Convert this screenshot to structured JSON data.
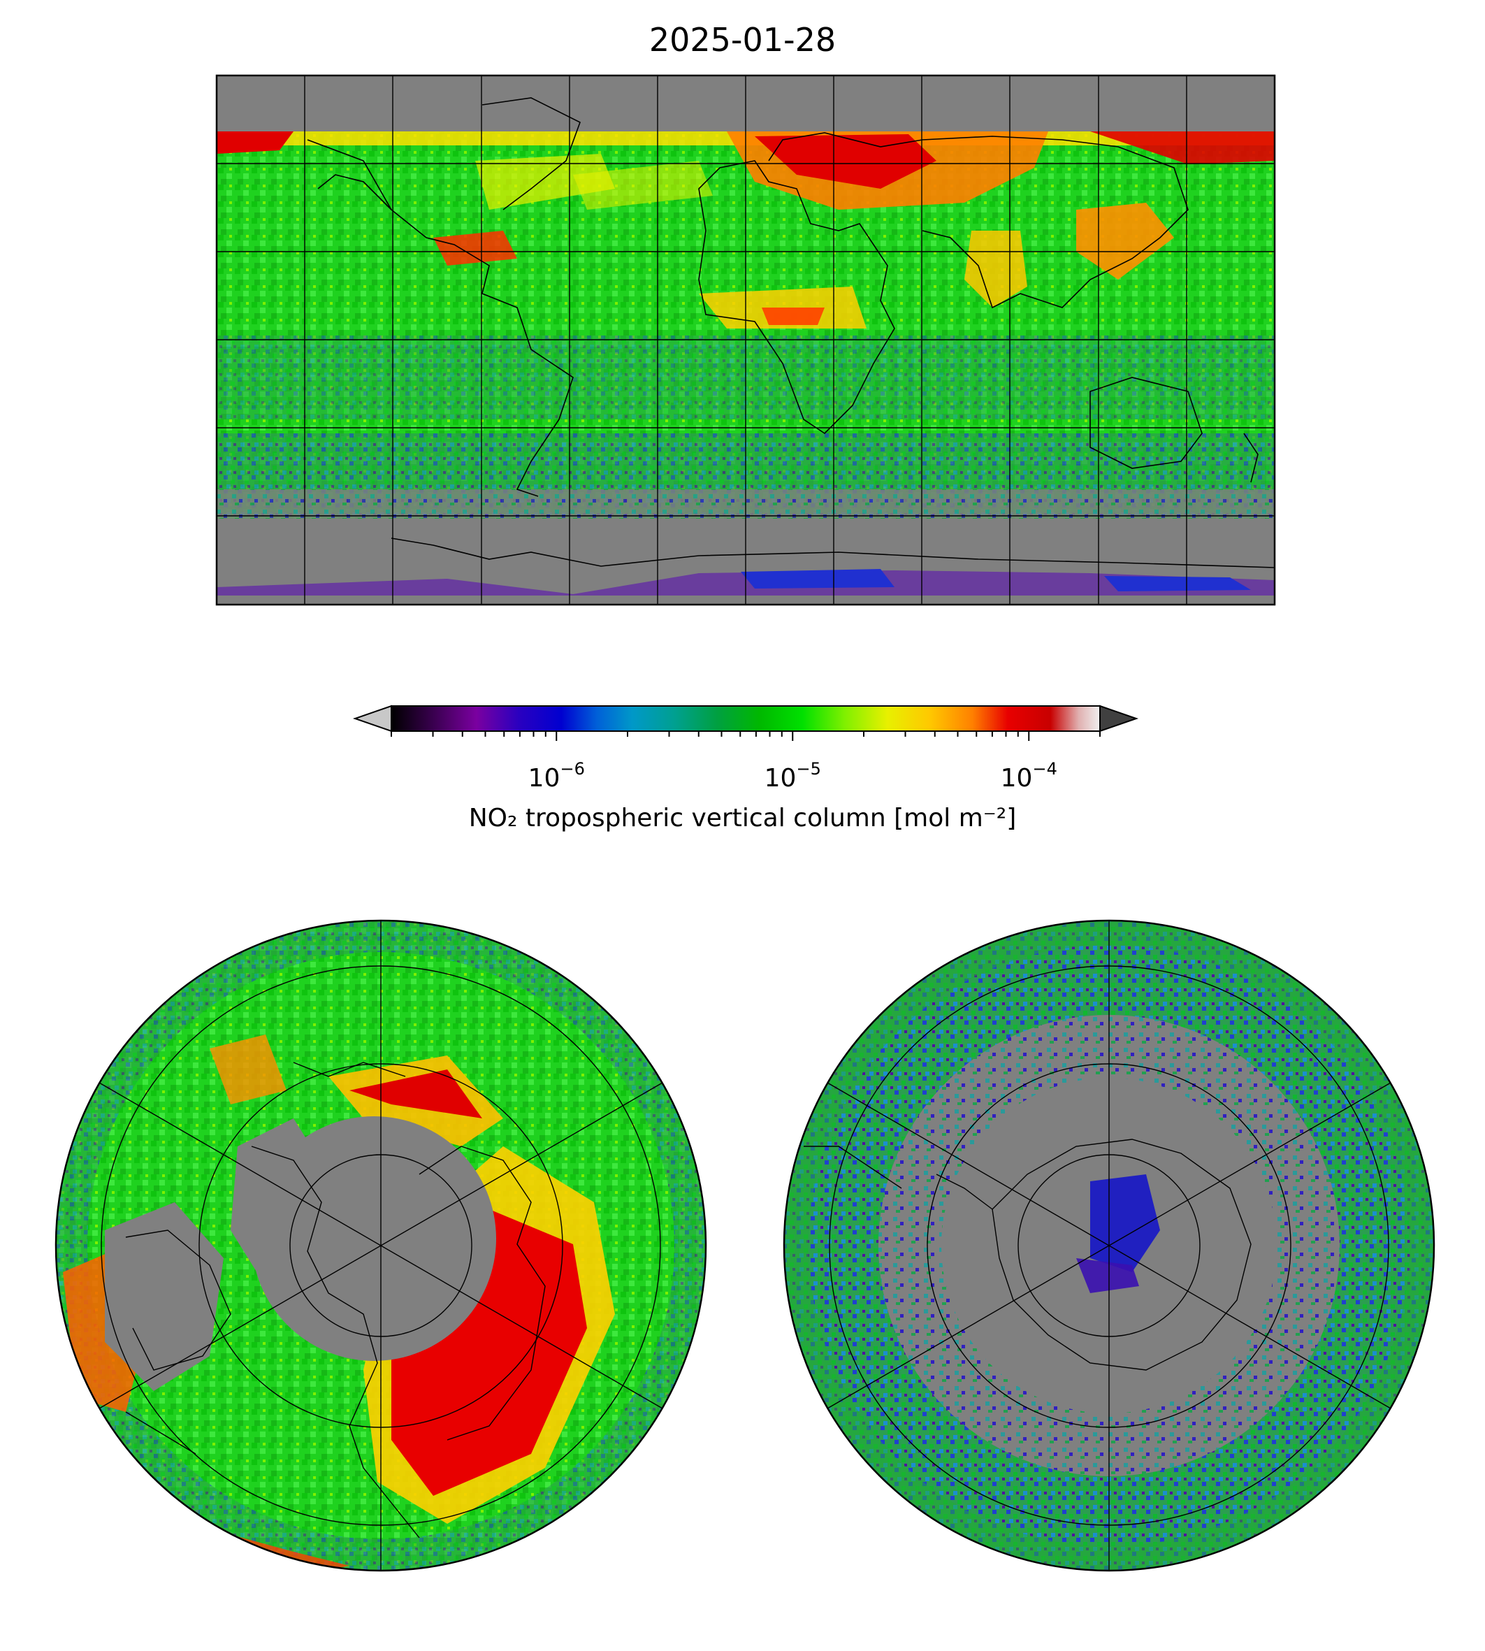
{
  "title": "2025-01-28",
  "colorbar": {
    "label": "NO₂ tropospheric vertical column [mol m⁻²]",
    "scale": "log",
    "range": [
      2e-07,
      0.0002
    ],
    "extend": "both",
    "ticks": [
      {
        "base": "10",
        "exp": "−6",
        "value": 1e-06
      },
      {
        "base": "10",
        "exp": "−5",
        "value": 1e-05
      },
      {
        "base": "10",
        "exp": "−4",
        "value": 0.0001
      }
    ],
    "colors": [
      "#000000",
      "#3a0050",
      "#7a00a0",
      "#2a00c0",
      "#0000d0",
      "#0060d8",
      "#0098c8",
      "#00a090",
      "#00a040",
      "#00b800",
      "#00e000",
      "#80f000",
      "#e8f000",
      "#ffc800",
      "#ff8000",
      "#e80000",
      "#c80000",
      "#e0b0b0",
      "#f0f0f0"
    ],
    "under_color": "#c8c8c8",
    "over_color": "#404040"
  },
  "maps": [
    {
      "name": "global-plate-carree",
      "projection": "PlateCarree"
    },
    {
      "name": "north-polar-stereo",
      "projection": "NorthPolarStereo"
    },
    {
      "name": "south-polar-stereo",
      "projection": "SouthPolarStereo"
    }
  ],
  "missing_color": "#808080"
}
